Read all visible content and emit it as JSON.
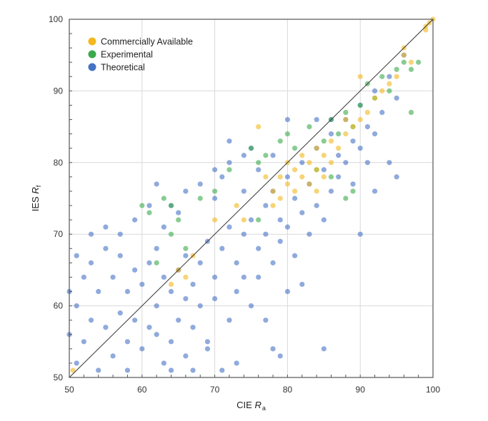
{
  "chart_data": {
    "type": "scatter",
    "xlabel": "CIE R",
    "xlabel_sub": "a",
    "ylabel": "IES R",
    "ylabel_sub": "f",
    "xlim": [
      50,
      100
    ],
    "ylim": [
      50,
      100
    ],
    "xticks": [
      "50",
      "60",
      "70",
      "80",
      "90",
      "100"
    ],
    "yticks": [
      "50",
      "60",
      "70",
      "80",
      "90",
      "100"
    ],
    "grid": true,
    "legend_position": "top-left",
    "reference_line": "y = x",
    "series": [
      {
        "name": "Theoretical",
        "color": "#4472c4",
        "points": [
          [
            51,
            52
          ],
          [
            52,
            55
          ],
          [
            53,
            58
          ],
          [
            51,
            60
          ],
          [
            54,
            62
          ],
          [
            55,
            57
          ],
          [
            56,
            53
          ],
          [
            57,
            59
          ],
          [
            58,
            55
          ],
          [
            52,
            64
          ],
          [
            53,
            66
          ],
          [
            55,
            68
          ],
          [
            56,
            64
          ],
          [
            58,
            62
          ],
          [
            59,
            58
          ],
          [
            60,
            54
          ],
          [
            61,
            57
          ],
          [
            62,
            60
          ],
          [
            63,
            52
          ],
          [
            64,
            55
          ],
          [
            65,
            58
          ],
          [
            66,
            61
          ],
          [
            60,
            63
          ],
          [
            61,
            66
          ],
          [
            62,
            68
          ],
          [
            63,
            64
          ],
          [
            64,
            62
          ],
          [
            65,
            65
          ],
          [
            66,
            67
          ],
          [
            67,
            63
          ],
          [
            68,
            66
          ],
          [
            69,
            69
          ],
          [
            70,
            64
          ],
          [
            71,
            68
          ],
          [
            72,
            71
          ],
          [
            73,
            66
          ],
          [
            74,
            70
          ],
          [
            75,
            72
          ],
          [
            67,
            57
          ],
          [
            68,
            60
          ],
          [
            69,
            55
          ],
          [
            70,
            61
          ],
          [
            72,
            58
          ],
          [
            73,
            62
          ],
          [
            57,
            70
          ],
          [
            59,
            72
          ],
          [
            61,
            74
          ],
          [
            63,
            71
          ],
          [
            65,
            73
          ],
          [
            66,
            76
          ],
          [
            68,
            77
          ],
          [
            70,
            75
          ],
          [
            71,
            78
          ],
          [
            72,
            80
          ],
          [
            74,
            76
          ],
          [
            75,
            82
          ],
          [
            76,
            79
          ],
          [
            77,
            74
          ],
          [
            78,
            76
          ],
          [
            79,
            72
          ],
          [
            80,
            78
          ],
          [
            81,
            75
          ],
          [
            82,
            80
          ],
          [
            83,
            77
          ],
          [
            84,
            82
          ],
          [
            85,
            79
          ],
          [
            86,
            84
          ],
          [
            87,
            81
          ],
          [
            88,
            86
          ],
          [
            89,
            83
          ],
          [
            90,
            88
          ],
          [
            91,
            85
          ],
          [
            92,
            90
          ],
          [
            93,
            87
          ],
          [
            94,
            92
          ],
          [
            95,
            89
          ],
          [
            96,
            95
          ],
          [
            76,
            68
          ],
          [
            77,
            70
          ],
          [
            78,
            66
          ],
          [
            79,
            69
          ],
          [
            80,
            71
          ],
          [
            81,
            67
          ],
          [
            82,
            73
          ],
          [
            83,
            70
          ],
          [
            84,
            74
          ],
          [
            85,
            72
          ],
          [
            86,
            76
          ],
          [
            87,
            78
          ],
          [
            88,
            80
          ],
          [
            89,
            77
          ],
          [
            90,
            82
          ],
          [
            91,
            80
          ],
          [
            92,
            84
          ],
          [
            78,
            54
          ],
          [
            79,
            53
          ],
          [
            85,
            54
          ],
          [
            77,
            58
          ],
          [
            75,
            60
          ],
          [
            90,
            70
          ],
          [
            92,
            76
          ],
          [
            94,
            80
          ],
          [
            95,
            78
          ],
          [
            73,
            52
          ],
          [
            71,
            51
          ],
          [
            66,
            53
          ],
          [
            58,
            51
          ],
          [
            54,
            51
          ],
          [
            50,
            56
          ],
          [
            50,
            62
          ],
          [
            51,
            67
          ],
          [
            53,
            70
          ],
          [
            55,
            71
          ],
          [
            57,
            67
          ],
          [
            59,
            65
          ],
          [
            62,
            56
          ],
          [
            64,
            51
          ],
          [
            67,
            51
          ],
          [
            69,
            54
          ],
          [
            74,
            64
          ],
          [
            76,
            64
          ],
          [
            80,
            62
          ],
          [
            82,
            63
          ],
          [
            86,
            86
          ],
          [
            84,
            86
          ],
          [
            80,
            86
          ],
          [
            78,
            81
          ],
          [
            74,
            81
          ],
          [
            72,
            83
          ],
          [
            70,
            79
          ],
          [
            64,
            74
          ],
          [
            62,
            77
          ]
        ]
      },
      {
        "name": "Experimental",
        "color": "#3aaa4a",
        "points": [
          [
            60,
            74
          ],
          [
            61,
            73
          ],
          [
            63,
            75
          ],
          [
            64,
            74
          ],
          [
            65,
            72
          ],
          [
            75,
            82
          ],
          [
            76,
            80
          ],
          [
            77,
            81
          ],
          [
            79,
            83
          ],
          [
            80,
            84
          ],
          [
            81,
            82
          ],
          [
            83,
            85
          ],
          [
            85,
            83
          ],
          [
            86,
            86
          ],
          [
            87,
            84
          ],
          [
            88,
            87
          ],
          [
            89,
            85
          ],
          [
            90,
            88
          ],
          [
            91,
            91
          ],
          [
            92,
            89
          ],
          [
            93,
            92
          ],
          [
            94,
            90
          ],
          [
            95,
            93
          ],
          [
            96,
            94
          ],
          [
            97,
            93
          ],
          [
            98,
            94
          ],
          [
            97,
            87
          ],
          [
            89,
            76
          ],
          [
            88,
            75
          ],
          [
            72,
            79
          ],
          [
            70,
            76
          ],
          [
            68,
            75
          ],
          [
            64,
            70
          ],
          [
            66,
            68
          ],
          [
            62,
            66
          ],
          [
            76,
            72
          ],
          [
            84,
            79
          ],
          [
            86,
            78
          ]
        ]
      },
      {
        "name": "Commercially Available",
        "color": "#f2b81c",
        "points": [
          [
            78,
            76
          ],
          [
            79,
            78
          ],
          [
            80,
            80
          ],
          [
            81,
            79
          ],
          [
            82,
            81
          ],
          [
            83,
            80
          ],
          [
            84,
            82
          ],
          [
            85,
            81
          ],
          [
            86,
            83
          ],
          [
            80,
            77
          ],
          [
            81,
            76
          ],
          [
            82,
            78
          ],
          [
            83,
            77
          ],
          [
            84,
            79
          ],
          [
            79,
            75
          ],
          [
            77,
            78
          ],
          [
            78,
            74
          ],
          [
            85,
            78
          ],
          [
            86,
            80
          ],
          [
            87,
            82
          ],
          [
            88,
            84
          ],
          [
            89,
            85
          ],
          [
            90,
            86
          ],
          [
            91,
            87
          ],
          [
            92,
            89
          ],
          [
            93,
            90
          ],
          [
            94,
            91
          ],
          [
            95,
            92
          ],
          [
            96,
            95
          ],
          [
            97,
            94
          ],
          [
            99,
            99
          ],
          [
            99.5,
            99.5
          ],
          [
            100,
            100
          ],
          [
            99,
            98.5
          ],
          [
            96,
            96
          ],
          [
            65,
            65
          ],
          [
            66,
            64
          ],
          [
            67,
            67
          ],
          [
            64,
            63
          ],
          [
            74,
            72
          ],
          [
            73,
            74
          ],
          [
            70,
            72
          ],
          [
            76,
            85
          ],
          [
            90,
            92
          ],
          [
            88,
            86
          ],
          [
            84,
            76
          ],
          [
            50.5,
            51
          ]
        ]
      }
    ]
  }
}
